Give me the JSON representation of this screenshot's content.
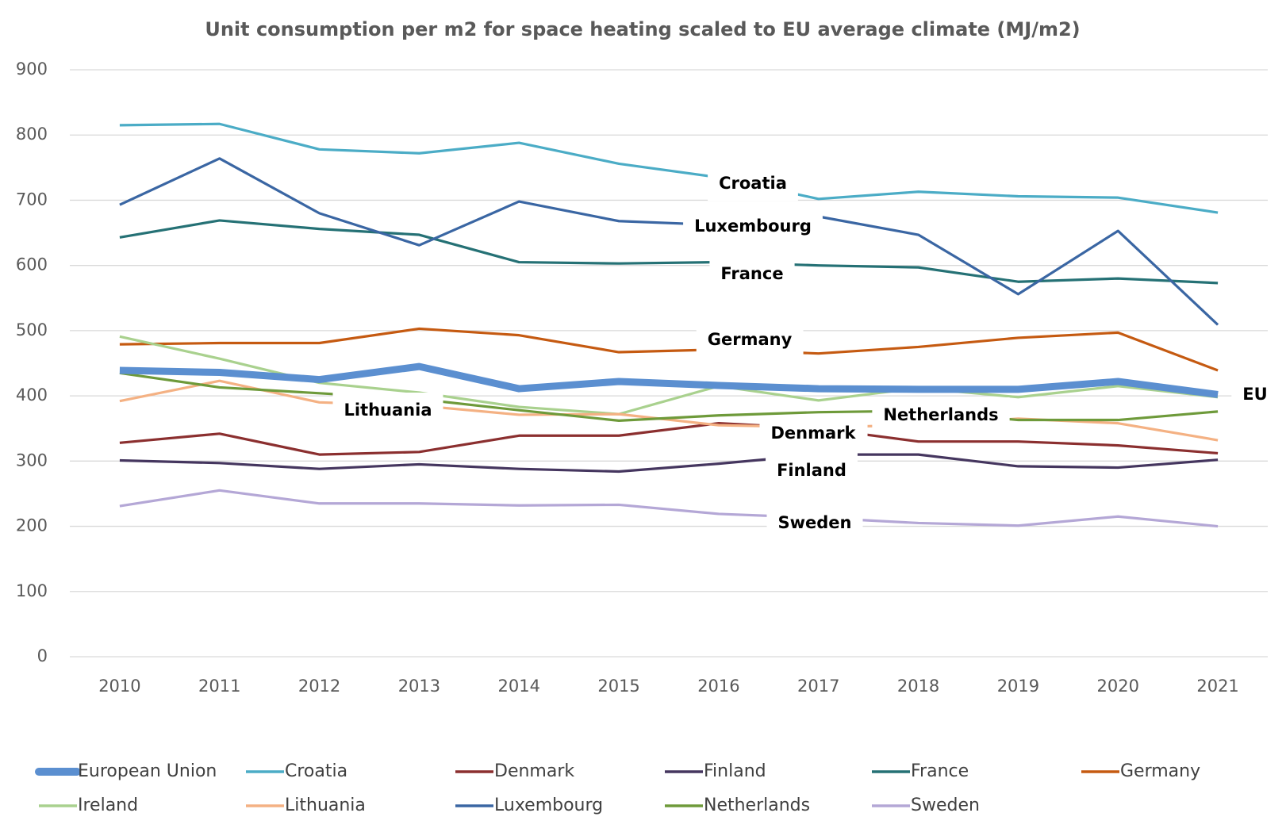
{
  "chart_data": {
    "type": "line",
    "title": "Unit consumption per m2 for space heating scaled to EU average climate (MJ/m2)",
    "categories": [
      "2010",
      "2011",
      "2012",
      "2013",
      "2014",
      "2015",
      "2016",
      "2017",
      "2018",
      "2019",
      "2020",
      "2021"
    ],
    "ylim": [
      0,
      900
    ],
    "yticks": [
      0,
      100,
      200,
      300,
      400,
      500,
      600,
      700,
      800,
      900
    ],
    "grid": true,
    "series": [
      {
        "name": "European Union",
        "color": "#5b8fd0",
        "values": [
          439,
          436,
          425,
          445,
          411,
          422,
          416,
          411,
          410,
          410,
          422,
          402
        ]
      },
      {
        "name": "Croatia",
        "color": "#4bacc6",
        "values": [
          815,
          817,
          778,
          772,
          788,
          756,
          735,
          702,
          713,
          706,
          704,
          681
        ]
      },
      {
        "name": "Denmark",
        "color": "#8b2f2f",
        "values": [
          328,
          342,
          310,
          314,
          339,
          339,
          358,
          350,
          330,
          330,
          324,
          312
        ]
      },
      {
        "name": "Finland",
        "color": "#45365f",
        "values": [
          301,
          297,
          288,
          295,
          288,
          284,
          296,
          310,
          310,
          292,
          290,
          302
        ]
      },
      {
        "name": "France",
        "color": "#257175",
        "values": [
          643,
          669,
          656,
          647,
          605,
          603,
          605,
          600,
          597,
          575,
          580,
          573
        ]
      },
      {
        "name": "Germany",
        "color": "#c55a11",
        "values": [
          479,
          481,
          481,
          503,
          493,
          467,
          471,
          465,
          475,
          489,
          497,
          439
        ]
      },
      {
        "name": "Ireland",
        "color": "#a9d18e",
        "values": [
          491,
          457,
          420,
          405,
          383,
          372,
          415,
          393,
          412,
          398,
          415,
          398
        ]
      },
      {
        "name": "Lithuania",
        "color": "#f4b183",
        "values": [
          392,
          423,
          390,
          385,
          371,
          372,
          355,
          352,
          355,
          365,
          358,
          332
        ]
      },
      {
        "name": "Luxembourg",
        "color": "#3a66a3",
        "values": [
          693,
          764,
          680,
          631,
          698,
          668,
          662,
          675,
          647,
          556,
          653,
          509
        ]
      },
      {
        "name": "Netherlands",
        "color": "#6e9a3a",
        "values": [
          435,
          413,
          404,
          395,
          378,
          362,
          370,
          375,
          377,
          363,
          363,
          376
        ]
      },
      {
        "name": "Sweden",
        "color": "#b4a7d6",
        "values": [
          231,
          255,
          235,
          235,
          232,
          233,
          219,
          213,
          205,
          201,
          215,
          200
        ]
      }
    ],
    "annotations": [
      "Croatia",
      "Luxembourg",
      "France",
      "Germany",
      "Lithuania",
      "Netherlands",
      "Denmark",
      "Finland",
      "Sweden",
      "EU"
    ]
  }
}
